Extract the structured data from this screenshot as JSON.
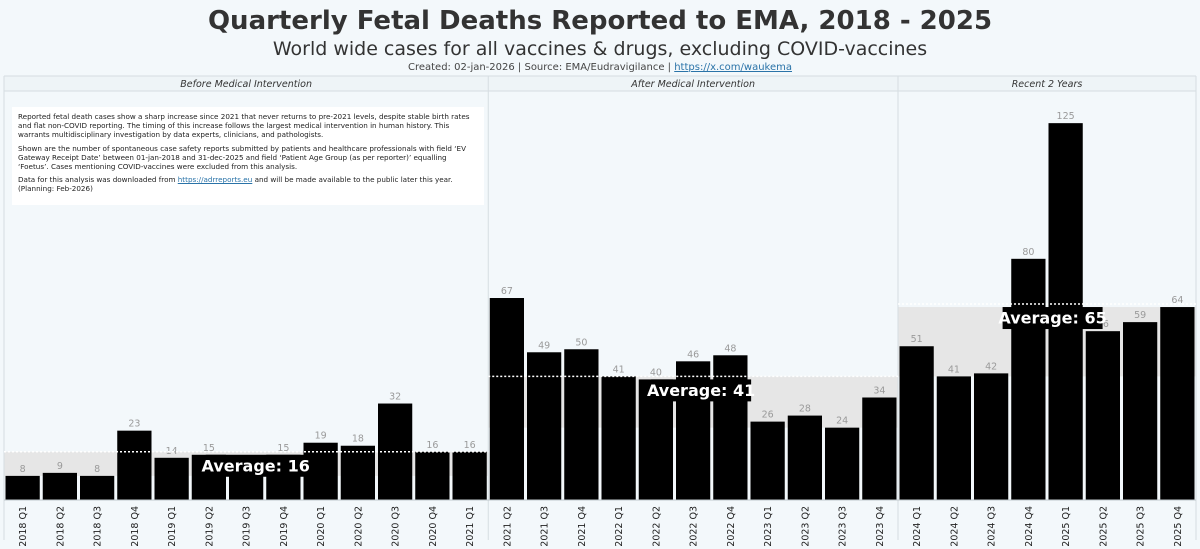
{
  "header": {
    "title": "Quarterly Fetal Deaths Reported to EMA, 2018 - 2025",
    "subtitle": "World wide cases for all vaccines & drugs, excluding COVID-vaccines",
    "credits_prefix": "Created: 02-jan-2026 | Source: EMA/Eudravigilance | ",
    "credits_link": "https://x.com/waukema"
  },
  "note": {
    "p1": "Reported fetal death cases show a sharp increase since 2021 that never returns to pre-2021 levels, despite stable birth rates and flat non-COVID reporting. The timing of this increase follows the largest medical intervention in human history. This warrants multidisciplinary investigation by data experts, clinicians, and pathologists.",
    "p2": "Shown are the number of spontaneous case safety reports submitted by patients and healthcare professionals with field ‘EV Gateway Receipt Date’ between 01-jan-2018 and 31-dec-2025 and field ‘Patient Age Group (as per reporter)’ equalling ‘Foetus’. Cases mentioning COVID-vaccines were excluded from this analysis.",
    "p3_prefix": "Data for this analysis was downloaded from ",
    "p3_link": "https://adrreports.eu",
    "p3_suffix": " and will be made available to the public later this year. (Planning: Feb-2026)"
  },
  "colors": {
    "bar": "#000000",
    "value_label": "#9a9a9a",
    "band": "#e6e6e6",
    "divider": "#d6dde2"
  },
  "chart_data": {
    "type": "bar",
    "title": "Quarterly Fetal Deaths Reported to EMA, 2018 - 2025",
    "xlabel": "",
    "ylabel": "",
    "ylim": [
      0,
      135
    ],
    "categories": [
      "2018 Q1",
      "2018 Q2",
      "2018 Q3",
      "2018 Q4",
      "2019 Q1",
      "2019 Q2",
      "2019 Q3",
      "2019 Q4",
      "2020 Q1",
      "2020 Q2",
      "2020 Q3",
      "2020 Q4",
      "2021 Q1",
      "2021 Q2",
      "2021 Q3",
      "2021 Q4",
      "2022 Q1",
      "2022 Q2",
      "2022 Q3",
      "2022 Q4",
      "2023 Q1",
      "2023 Q2",
      "2023 Q3",
      "2023 Q4",
      "2024 Q1",
      "2024 Q2",
      "2024 Q3",
      "2024 Q4",
      "2025 Q1",
      "2025 Q2",
      "2025 Q3",
      "2025 Q4"
    ],
    "values": [
      8,
      9,
      8,
      23,
      14,
      15,
      11,
      15,
      19,
      18,
      32,
      16,
      16,
      67,
      49,
      50,
      41,
      40,
      46,
      48,
      26,
      28,
      24,
      34,
      51,
      41,
      42,
      80,
      125,
      56,
      59,
      64
    ],
    "panels": [
      {
        "title": "Before Medical Intervention",
        "start": 0,
        "end": 12,
        "average": 16,
        "average_label": "Average: 16",
        "band_min": 8,
        "band_max": 16
      },
      {
        "title": "After Medical Intervention",
        "start": 13,
        "end": 23,
        "average": 41,
        "average_label": "Average: 41",
        "band_min": 24,
        "band_max": 41
      },
      {
        "title": "Recent 2 Years",
        "start": 24,
        "end": 31,
        "average": 65,
        "average_label": "Average: 65",
        "band_min": 41,
        "band_max": 64
      }
    ]
  }
}
